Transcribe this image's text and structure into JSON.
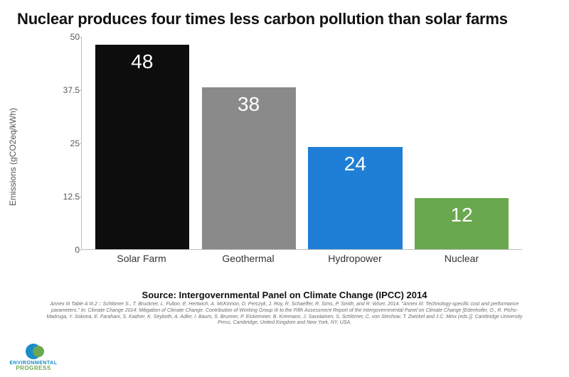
{
  "title": "Nuclear produces four times less carbon pollution than solar farms",
  "chart": {
    "type": "bar",
    "ylabel": "Emissions (gCO2eq/kWh)",
    "ylim": [
      0,
      50
    ],
    "yticks": [
      0,
      12.5,
      25,
      37.5,
      50
    ],
    "background_color": "#ffffff",
    "axis_color": "#bdbdbd",
    "tick_label_color": "#555555",
    "tick_fontsize": 12,
    "ylabel_fontsize": 12,
    "xlabel_fontsize": 14,
    "value_label_fontsize": 28,
    "value_label_color": "#ffffff",
    "bar_width": 0.92,
    "categories": [
      "Solar Farm",
      "Geothermal",
      "Hydropower",
      "Nuclear"
    ],
    "values": [
      48,
      38,
      24,
      12
    ],
    "bar_colors": [
      "#0d0d0d",
      "#8a8a8a",
      "#1f7fd6",
      "#6aa84f"
    ]
  },
  "source": {
    "main": "Source: Intergovernmental Panel on Climate Change (IPCC) 2014",
    "fine": "Annex III Table A III.2  ::  Schlömer S., T. Bruckner, L. Fulton, E. Hertwich, A. McKinnon, D. Perczyk, J. Roy, R. Schaeffer, R. Sims, P. Smith, and R. Wiser, 2014. \"Annex III: Technology-specific cost and performance parameters.\" In: Climate Change 2014: Mitigation of Climate Change. Contribution of Working Group III to the Fifth Assessment Report of the Intergovernmental Panel on Climate Change [Edenhofer, O., R. Pichs-Madruga, Y. Sokona, E. Farahani, S. Kadner, K. Seyboth, A. Adler, I. Baum, S. Brunner, P. Eickemeier, B. Kriemann, J. Savolainen, S. Schlömer, C. von Stechow, T. Zwickel and J.C. Minx (eds.)]. Cambridge University Press, Cambridge, United Kingdom and New York, NY, USA."
  },
  "logo": {
    "line1": "ENVIRONMENTAL",
    "line2": "PROGRESS",
    "color_blue": "#1a8cc9",
    "color_green": "#6aa84f"
  }
}
